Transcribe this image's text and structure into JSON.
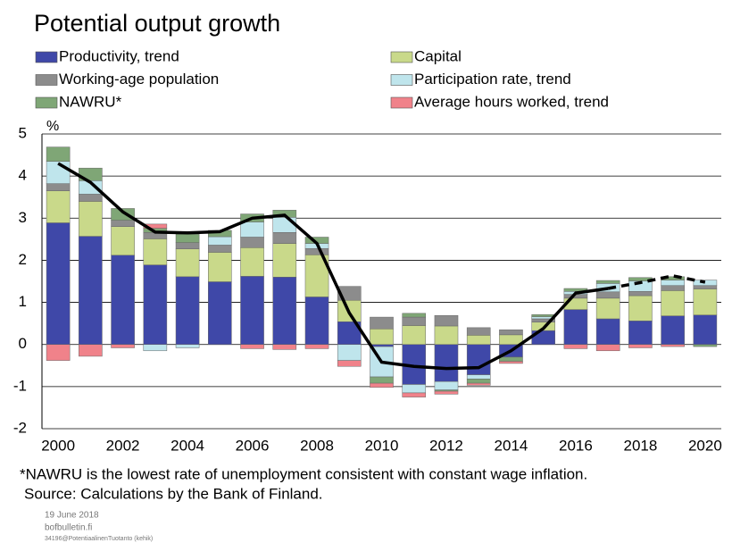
{
  "chart_data": {
    "type": "bar",
    "stacked": true,
    "title": "Potential output growth",
    "y_label": "%",
    "x": [
      2000,
      2001,
      2002,
      2003,
      2004,
      2005,
      2006,
      2007,
      2008,
      2009,
      2010,
      2011,
      2012,
      2013,
      2014,
      2015,
      2016,
      2017,
      2018,
      2019,
      2020
    ],
    "xlim": [
      1999.5,
      2020.5
    ],
    "xticks": [
      2000,
      2002,
      2004,
      2006,
      2008,
      2010,
      2012,
      2014,
      2016,
      2018,
      2020
    ],
    "ylim": [
      -2,
      5
    ],
    "yticks": [
      -2,
      -1,
      0,
      1,
      2,
      3,
      4,
      5
    ],
    "grid": true,
    "series": [
      {
        "name": "Productivity, trend",
        "color": "#3f48a8",
        "values": [
          2.89,
          2.57,
          2.12,
          1.89,
          1.61,
          1.49,
          1.62,
          1.6,
          1.13,
          0.54,
          -0.05,
          -0.95,
          -0.88,
          -0.72,
          -0.3,
          0.33,
          0.83,
          0.61,
          0.56,
          0.68,
          0.7
        ]
      },
      {
        "name": "Capital",
        "color": "#c9d98a",
        "values": [
          0.76,
          0.83,
          0.68,
          0.62,
          0.66,
          0.7,
          0.68,
          0.8,
          1.0,
          0.51,
          0.37,
          0.45,
          0.44,
          0.22,
          0.23,
          0.2,
          0.27,
          0.49,
          0.6,
          0.6,
          0.62
        ]
      },
      {
        "name": "Working-age population",
        "color": "#8c8c8c",
        "values": [
          0.17,
          0.17,
          0.15,
          0.15,
          0.15,
          0.17,
          0.25,
          0.26,
          0.15,
          0.33,
          0.28,
          0.2,
          0.25,
          0.18,
          0.12,
          0.08,
          0.09,
          0.15,
          0.1,
          0.12,
          0.08
        ]
      },
      {
        "name": "Participation rate, trend",
        "color": "#bfe5ec",
        "values": [
          0.53,
          0.32,
          0,
          -0.15,
          -0.08,
          0.2,
          0.36,
          0.36,
          0.12,
          -0.38,
          -0.72,
          -0.2,
          -0.2,
          -0.1,
          0,
          0.05,
          0.07,
          0.2,
          0.25,
          0.13,
          0.13
        ]
      },
      {
        "name": "NAWRU*",
        "color": "#7fa676",
        "values": [
          0.34,
          0.3,
          0.28,
          0.1,
          0.2,
          0.15,
          0.19,
          0.17,
          0.15,
          0,
          -0.15,
          0.09,
          -0.03,
          -0.1,
          -0.1,
          0.05,
          0.07,
          0.07,
          0.08,
          0.08,
          -0.05
        ]
      },
      {
        "name": "Average hours worked, trend",
        "color": "#f0828a",
        "values": [
          -0.38,
          -0.28,
          -0.08,
          0.1,
          0,
          0,
          -0.1,
          -0.12,
          -0.1,
          -0.14,
          -0.1,
          -0.1,
          -0.07,
          -0.05,
          -0.05,
          0,
          -0.1,
          -0.15,
          -0.08,
          -0.05,
          0
        ]
      }
    ],
    "lines": [
      {
        "color": "#000000",
        "dashed": false,
        "values": [
          4.3,
          3.85,
          3.15,
          2.67,
          2.65,
          2.68,
          3.0,
          3.07,
          2.4,
          0.75,
          -0.42,
          -0.52,
          -0.57,
          -0.55,
          -0.15,
          0.38,
          1.22,
          1.33,
          null,
          null,
          null
        ]
      },
      {
        "color": "#000000",
        "dashed": true,
        "values": [
          null,
          null,
          null,
          null,
          null,
          null,
          null,
          null,
          null,
          null,
          null,
          null,
          null,
          null,
          null,
          null,
          null,
          1.33,
          1.47,
          1.63,
          1.48
        ]
      }
    ],
    "note": "*NAWRU is the lowest rate of unemployment consistent with constant wage inflation.",
    "source": "Source: Calculations by the Bank of Finland.",
    "date": "19 June 2018",
    "site": "bofbulletin.fi",
    "code": "34196@PotentiaalinenTuotanto (kehik)"
  }
}
